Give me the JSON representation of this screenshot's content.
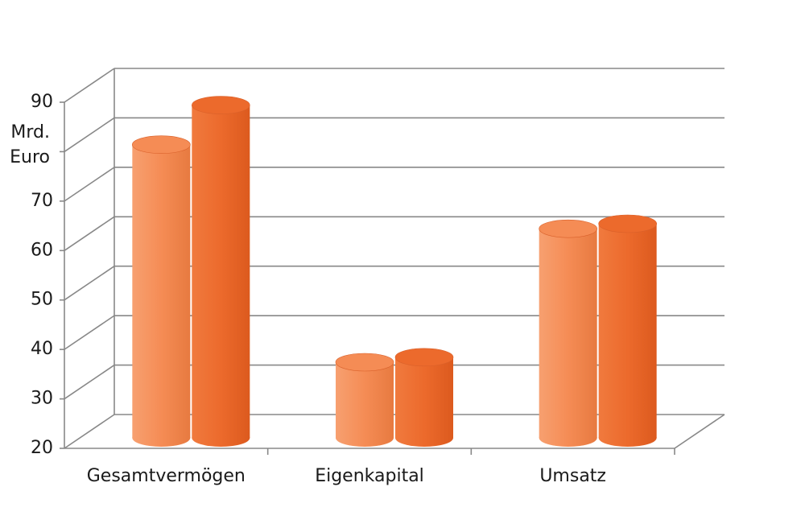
{
  "chart_data": {
    "type": "bar3d-cylinder",
    "ylabel": [
      "Mrd.",
      "Euro"
    ],
    "categories": [
      "Gesamtvermögen",
      "Eigenkapital",
      "Umsatz"
    ],
    "series": [
      {
        "color": "#f58c55",
        "values": [
          78,
          34,
          61
        ]
      },
      {
        "color": "#ec6a2c",
        "values": [
          86,
          35,
          62
        ]
      }
    ],
    "ylim": [
      20,
      90
    ],
    "yticks": [
      20,
      30,
      40,
      50,
      60,
      70,
      {
        "value": 80,
        "label": null
      },
      90
    ],
    "grid": true
  }
}
